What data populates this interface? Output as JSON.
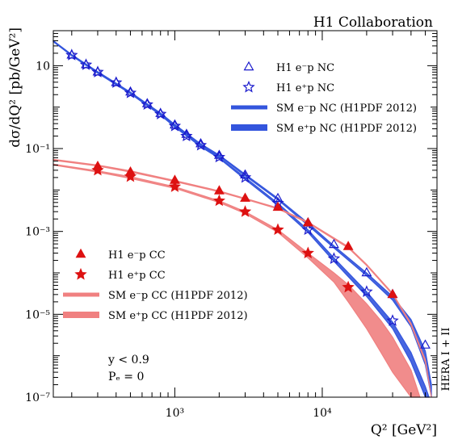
{
  "chart_data": {
    "type": "scatter",
    "title": "H1 Collaboration",
    "xlabel": "Q² [GeV²]",
    "ylabel": "dσ/dQ² [pb/GeV²]",
    "x_scale": "log",
    "y_scale": "log",
    "xlim": [
      150,
      60000
    ],
    "ylim": [
      1e-07,
      70
    ],
    "x_ticks": [
      {
        "value": 1000,
        "label": "10³"
      },
      {
        "value": 10000,
        "label": "10⁴"
      }
    ],
    "y_ticks": [
      {
        "value": 10,
        "label": "10"
      },
      {
        "value": 0.1,
        "label": "10⁻¹"
      },
      {
        "value": 0.001,
        "label": "10⁻³"
      },
      {
        "value": 1e-05,
        "label": "10⁻⁵"
      },
      {
        "value": 1e-07,
        "label": "10⁻⁷"
      }
    ],
    "side_label": "HERA I + II",
    "annotations": [
      "y < 0.9",
      "Pₑ = 0"
    ],
    "series": [
      {
        "name": "H1 e⁻p NC",
        "kind": "points",
        "marker": "open-triangle",
        "color": "#1a1acc",
        "x": [
          200,
          250,
          300,
          400,
          500,
          650,
          800,
          1000,
          1200,
          1500,
          2000,
          3000,
          5000,
          8000,
          12000,
          20000,
          30000,
          50000
        ],
        "y": [
          18,
          10.5,
          7,
          3.9,
          2.3,
          1.2,
          0.7,
          0.37,
          0.22,
          0.13,
          0.068,
          0.023,
          0.0062,
          0.0016,
          0.00048,
          0.0001,
          3e-05,
          1.8e-06
        ]
      },
      {
        "name": "H1 e⁺p NC",
        "kind": "points",
        "marker": "open-star",
        "color": "#1a1acc",
        "x": [
          200,
          250,
          300,
          400,
          500,
          650,
          800,
          1000,
          1200,
          1500,
          2000,
          3000,
          5000,
          8000,
          12000,
          20000,
          30000
        ],
        "y": [
          18,
          10.5,
          7,
          3.9,
          2.2,
          1.15,
          0.68,
          0.35,
          0.2,
          0.12,
          0.062,
          0.02,
          0.0048,
          0.0011,
          0.00022,
          3.5e-05,
          7e-06
        ]
      },
      {
        "name": "SM e⁻p NC (H1PDF 2012)",
        "kind": "band",
        "color": "#3355dd",
        "x": [
          150,
          200,
          300,
          500,
          800,
          1000,
          1500,
          2000,
          3000,
          5000,
          8000,
          12000,
          20000,
          30000,
          40000,
          50000,
          55000
        ],
        "y": [
          40,
          18.5,
          7.2,
          2.3,
          0.72,
          0.38,
          0.13,
          0.07,
          0.024,
          0.0063,
          0.0016,
          0.00045,
          0.0001,
          2.7e-05,
          7.5e-06,
          1.3e-06,
          2e-07
        ],
        "y_lo": [
          38,
          17.5,
          6.8,
          2.2,
          0.68,
          0.36,
          0.12,
          0.066,
          0.022,
          0.0058,
          0.0014,
          0.0004,
          8.5e-05,
          2.2e-05,
          5e-06,
          6e-07,
          1e-07
        ]
      },
      {
        "name": "SM e⁺p NC (H1PDF 2012)",
        "kind": "band",
        "color": "#3355dd",
        "x": [
          150,
          200,
          300,
          500,
          800,
          1000,
          1500,
          2000,
          3000,
          5000,
          8000,
          12000,
          20000,
          30000,
          40000,
          50000,
          53000
        ],
        "y": [
          40,
          18.3,
          7.0,
          2.2,
          0.68,
          0.35,
          0.12,
          0.062,
          0.02,
          0.0048,
          0.0011,
          0.00023,
          3.5e-05,
          6.5e-06,
          1.2e-06,
          1.8e-07,
          1e-07
        ],
        "y_lo": [
          38,
          17.3,
          6.6,
          2.1,
          0.64,
          0.33,
          0.11,
          0.058,
          0.018,
          0.0043,
          0.00095,
          0.00019,
          2.7e-05,
          4.5e-06,
          7e-07,
          1e-07,
          1e-07
        ]
      },
      {
        "name": "H1 e⁻p CC",
        "kind": "points",
        "marker": "filled-triangle",
        "color": "#dd1111",
        "x": [
          300,
          500,
          1000,
          2000,
          3000,
          5000,
          8000,
          15000,
          30000
        ],
        "y": [
          0.037,
          0.027,
          0.017,
          0.0095,
          0.0063,
          0.0038,
          0.0016,
          0.00043,
          3e-05
        ]
      },
      {
        "name": "H1 e⁺p CC",
        "kind": "points",
        "marker": "filled-star",
        "color": "#dd1111",
        "x": [
          300,
          500,
          1000,
          2000,
          3000,
          5000,
          8000,
          15000
        ],
        "y": [
          0.03,
          0.021,
          0.012,
          0.0055,
          0.003,
          0.0011,
          0.0003,
          4.5e-05
        ]
      },
      {
        "name": "SM e⁻p CC (H1PDF 2012)",
        "kind": "band",
        "color": "#f08080",
        "x": [
          150,
          300,
          500,
          1000,
          2000,
          3000,
          5000,
          8000,
          12000,
          15000,
          20000,
          30000,
          40000,
          50000,
          55000
        ],
        "y": [
          0.055,
          0.04,
          0.029,
          0.017,
          0.0095,
          0.0063,
          0.0037,
          0.0017,
          0.0007,
          0.00043,
          0.00016,
          3.2e-05,
          6e-06,
          8e-07,
          1e-07
        ],
        "y_lo": [
          0.052,
          0.038,
          0.027,
          0.016,
          0.009,
          0.006,
          0.0035,
          0.0016,
          0.00065,
          0.0004,
          0.00015,
          3e-05,
          5.5e-06,
          7e-07,
          1e-07
        ]
      },
      {
        "name": "SM e⁺p CC (H1PDF 2012)",
        "kind": "band",
        "color": "#f08080",
        "x": [
          150,
          300,
          500,
          1000,
          2000,
          3000,
          5000,
          8000,
          12000,
          15000,
          20000,
          25000,
          30000,
          40000,
          46000
        ],
        "y": [
          0.042,
          0.029,
          0.021,
          0.012,
          0.0055,
          0.003,
          0.0011,
          0.0003,
          0.0001,
          5.2e-05,
          1.8e-05,
          7e-06,
          2.8e-06,
          4.5e-07,
          1e-07
        ],
        "y_lo": [
          0.04,
          0.027,
          0.019,
          0.011,
          0.005,
          0.0027,
          0.00095,
          0.00023,
          6e-05,
          2e-05,
          4.5e-06,
          1.2e-06,
          4e-07,
          1e-07,
          1e-07
        ]
      }
    ],
    "legends": [
      {
        "entries": [
          "H1 e⁻p NC",
          "H1 e⁺p NC",
          "SM e⁻p NC (H1PDF 2012)",
          "SM e⁺p NC (H1PDF 2012)"
        ]
      },
      {
        "entries": [
          "H1 e⁻p CC",
          "H1 e⁺p CC",
          "SM e⁻p CC (H1PDF 2012)",
          "SM e⁺p CC (H1PDF 2012)"
        ]
      }
    ]
  }
}
